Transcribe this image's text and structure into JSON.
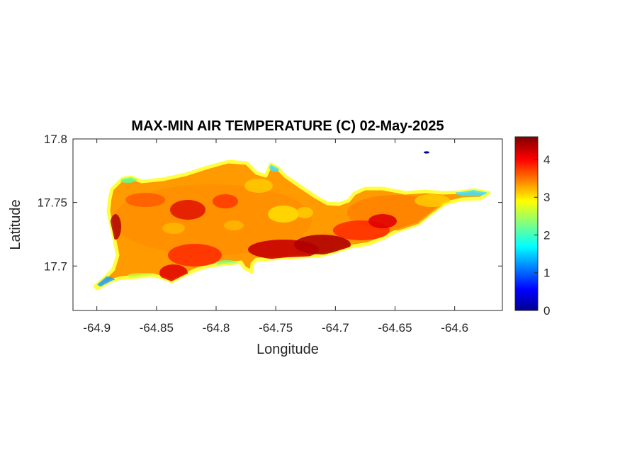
{
  "chart_data": {
    "type": "heatmap",
    "title": "MAX-MIN AIR TEMPERATURE (C) 02-May-2025",
    "xlabel": "Longitude",
    "ylabel": "Latitude",
    "xlim": [
      -64.92,
      -64.56
    ],
    "ylim": [
      17.665,
      17.8
    ],
    "xticks": [
      -64.9,
      -64.85,
      -64.8,
      -64.75,
      -64.7,
      -64.65,
      -64.6
    ],
    "xtick_labels": [
      "-64.9",
      "-64.85",
      "-64.8",
      "-64.75",
      "-64.7",
      "-64.65",
      "-64.6"
    ],
    "yticks": [
      17.7,
      17.75,
      17.8
    ],
    "ytick_labels": [
      "17.7",
      "17.75",
      "17.8"
    ],
    "colorbar": {
      "colormap": "jet",
      "range": [
        0,
        4.6
      ],
      "ticks": [
        0,
        1,
        2,
        3,
        4
      ],
      "tick_labels": [
        "0",
        "1",
        "2",
        "3",
        "4"
      ]
    },
    "grid": false,
    "description_values": {
      "island_typical": 3.5,
      "south_coast_max": 4.5,
      "coastal_edges": 2.2,
      "southwest_tip": 1.2,
      "offshore_islet": 0.1
    }
  }
}
